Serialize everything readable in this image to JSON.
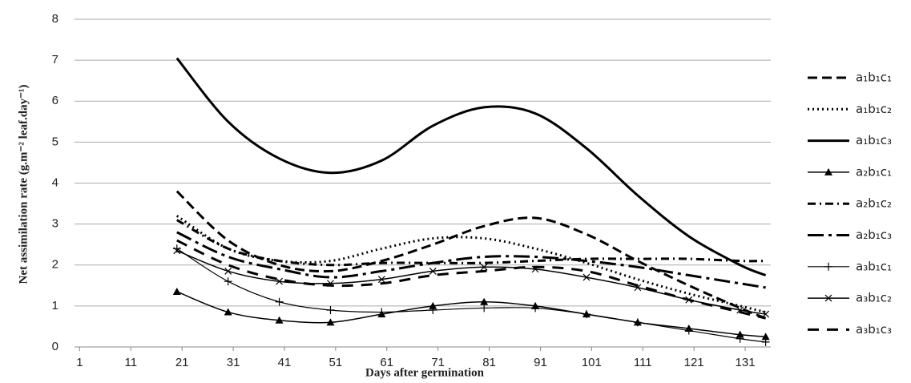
{
  "chart_data": {
    "type": "line",
    "y_label": "Net assimilation rate (g.m⁻² leaf.day⁻¹)",
    "x_label": "Days after germination",
    "x": [
      20,
      30,
      40,
      50,
      60,
      70,
      80,
      90,
      100,
      110,
      120,
      130,
      135
    ],
    "xlim": [
      0,
      136
    ],
    "xticks": [
      1,
      11,
      21,
      31,
      41,
      51,
      61,
      71,
      81,
      91,
      101,
      111,
      121,
      131
    ],
    "ylim": [
      0,
      8
    ],
    "yticks": [
      0,
      1,
      2,
      3,
      4,
      5,
      6,
      7,
      8
    ],
    "grid": true,
    "legend": "right",
    "series": [
      {
        "name": "a₁b₁c₁",
        "color": "#000000",
        "style": "dashed",
        "width": 3,
        "values": [
          3.8,
          2.6,
          2.0,
          1.85,
          2.1,
          2.5,
          2.95,
          3.15,
          2.75,
          2.1,
          1.5,
          0.95,
          0.7
        ]
      },
      {
        "name": "a₁b₁c₂",
        "color": "#000000",
        "style": "dotted",
        "width": 3,
        "values": [
          3.2,
          2.4,
          2.1,
          2.1,
          2.4,
          2.65,
          2.65,
          2.4,
          2.05,
          1.65,
          1.3,
          1.0,
          0.85
        ]
      },
      {
        "name": "a₁b₁c₃",
        "color": "#000000",
        "style": "solid",
        "width": 3,
        "values": [
          7.05,
          5.5,
          4.6,
          4.25,
          4.55,
          5.4,
          5.85,
          5.7,
          4.85,
          3.7,
          2.7,
          2.0,
          1.75
        ]
      },
      {
        "name": "a₂b₁c₁",
        "color": "#000000",
        "style": "solid",
        "width": 1.5,
        "marker": "triangle",
        "values": [
          1.35,
          0.85,
          0.65,
          0.6,
          0.8,
          1.0,
          1.1,
          1.0,
          0.8,
          0.6,
          0.45,
          0.3,
          0.25
        ]
      },
      {
        "name": "a₂b₁c₂",
        "color": "#000000",
        "style": "dashdot",
        "width": 3,
        "values": [
          3.1,
          2.4,
          2.1,
          2.0,
          2.05,
          2.05,
          2.05,
          2.1,
          2.15,
          2.15,
          2.15,
          2.1,
          2.1
        ]
      },
      {
        "name": "a₂b₁c₃",
        "color": "#000000",
        "style": "longdashdot",
        "width": 3,
        "values": [
          2.8,
          2.2,
          1.9,
          1.7,
          1.85,
          2.05,
          2.2,
          2.2,
          2.1,
          1.95,
          1.75,
          1.55,
          1.45
        ]
      },
      {
        "name": "a₃b₁c₁",
        "color": "#000000",
        "style": "solid",
        "width": 1.2,
        "marker": "plus",
        "values": [
          2.4,
          1.6,
          1.1,
          0.9,
          0.85,
          0.9,
          0.95,
          0.95,
          0.8,
          0.6,
          0.4,
          0.2,
          0.12
        ]
      },
      {
        "name": "a₃b₁c₂",
        "color": "#000000",
        "style": "solid",
        "width": 1.5,
        "marker": "x",
        "values": [
          2.35,
          1.85,
          1.6,
          1.55,
          1.65,
          1.85,
          1.95,
          1.9,
          1.7,
          1.45,
          1.15,
          0.9,
          0.8
        ]
      },
      {
        "name": "a₃b₁c₃",
        "color": "#000000",
        "style": "longdash",
        "width": 3,
        "values": [
          2.6,
          2.0,
          1.65,
          1.5,
          1.55,
          1.75,
          1.85,
          1.95,
          1.85,
          1.5,
          1.15,
          0.85,
          0.7
        ]
      }
    ]
  }
}
